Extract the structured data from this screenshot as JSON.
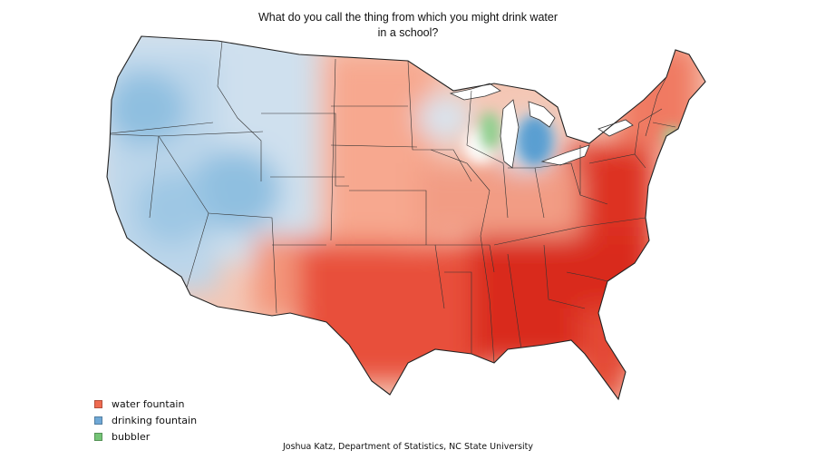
{
  "map": {
    "title_line1": "What do you call the thing from which you might drink water",
    "title_line2": "in a school?",
    "legend": [
      {
        "label": "water fountain",
        "color": "#ef6a50"
      },
      {
        "label": "drinking fountain",
        "color": "#6fa8d6"
      },
      {
        "label": "bubbler",
        "color": "#74c476"
      }
    ],
    "credit": "Joshua Katz, Department of Statistics, NC State University"
  }
}
